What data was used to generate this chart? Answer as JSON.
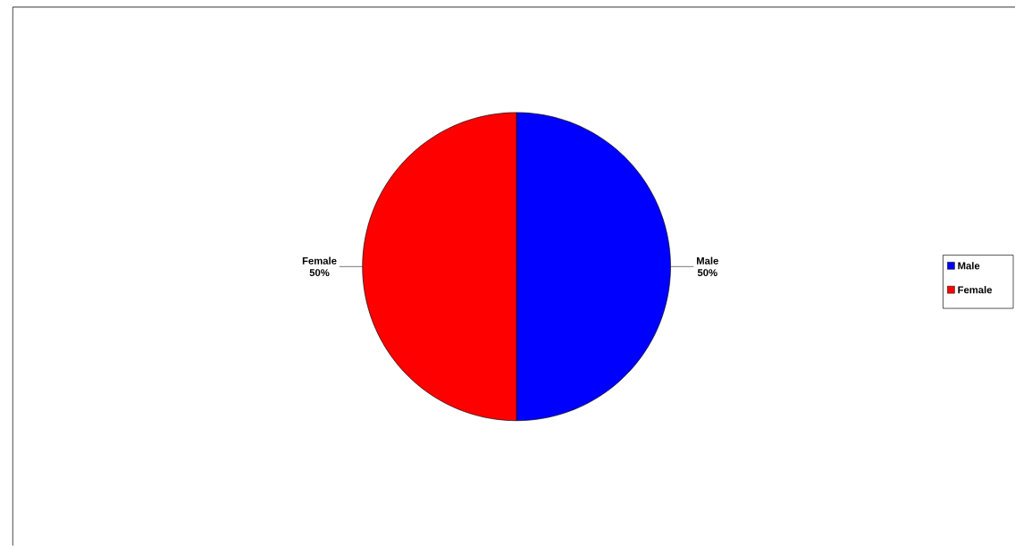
{
  "chart_data": {
    "type": "pie",
    "categories": [
      "Male",
      "Female"
    ],
    "values": [
      50,
      50
    ],
    "colors": [
      "#0000ff",
      "#ff0000"
    ],
    "value_labels": [
      "50%",
      "50%"
    ],
    "legend": "right"
  }
}
